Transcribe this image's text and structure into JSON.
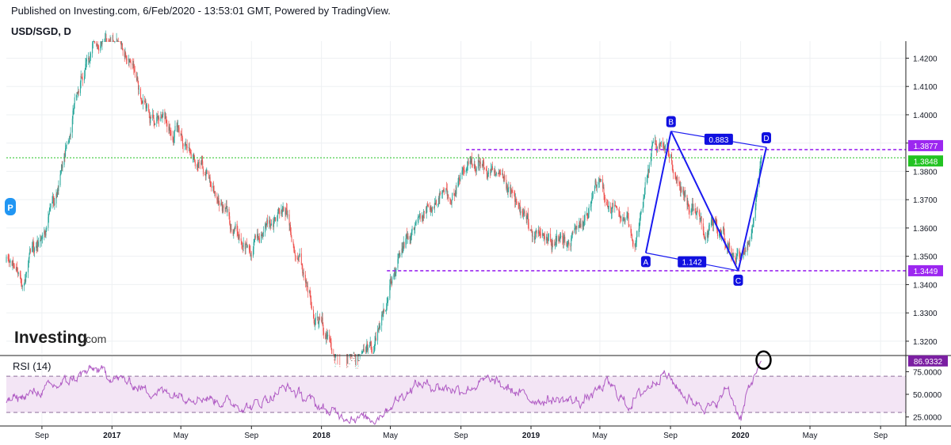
{
  "header": {
    "published": "Published on Investing.com, 6/Feb/2020 - 13:53:01 GMT, Powered by TradingView.",
    "symbol": "USD/SGD, D"
  },
  "logo": {
    "brand": "Investing",
    "suffix": ".com"
  },
  "price_marker": "P",
  "rsi_label": "RSI (14)",
  "colors": {
    "up_candle": "#26a69a",
    "down_candle": "#ef5350",
    "pattern_blue": "#1a1af0",
    "level_purple": "#9c27f0",
    "current_price_green": "#22c322",
    "rsi_line": "#b05cc4",
    "rsi_band": "#f3e5f5"
  },
  "chart_data": [
    {
      "type": "candlestick",
      "title": "USD/SGD, D",
      "x_tick_labels": [
        "Sep",
        "2017",
        "May",
        "Sep",
        "2018",
        "May",
        "Sep",
        "2019",
        "May",
        "Sep",
        "2020",
        "May",
        "Sep"
      ],
      "y_tick_labels": [
        "1.4200",
        "1.4100",
        "1.4000",
        "1.3900",
        "1.3800",
        "1.3700",
        "1.3600",
        "1.3500",
        "1.3400",
        "1.3300",
        "1.3200"
      ],
      "ylim": [
        1.3155,
        1.426
      ],
      "xlim": [
        "2016-07-01",
        "2020-10-15"
      ],
      "grid": true,
      "close_path": [
        [
          "2016-07-01",
          1.348
        ],
        [
          "2016-08-01",
          1.343
        ],
        [
          "2016-09-01",
          1.357
        ],
        [
          "2016-10-01",
          1.375
        ],
        [
          "2016-11-01",
          1.405
        ],
        [
          "2016-12-01",
          1.425
        ],
        [
          "2017-01-01",
          1.43
        ],
        [
          "2017-02-01",
          1.418
        ],
        [
          "2017-03-01",
          1.4
        ],
        [
          "2017-04-01",
          1.398
        ],
        [
          "2017-05-01",
          1.395
        ],
        [
          "2017-06-01",
          1.385
        ],
        [
          "2017-07-01",
          1.372
        ],
        [
          "2017-08-01",
          1.36
        ],
        [
          "2017-09-01",
          1.352
        ],
        [
          "2017-10-01",
          1.362
        ],
        [
          "2017-11-01",
          1.366
        ],
        [
          "2017-12-01",
          1.345
        ],
        [
          "2018-01-01",
          1.325
        ],
        [
          "2018-02-01",
          1.315
        ],
        [
          "2018-03-01",
          1.312
        ],
        [
          "2018-04-01",
          1.318
        ],
        [
          "2018-05-01",
          1.34
        ],
        [
          "2018-06-01",
          1.355
        ],
        [
          "2018-07-01",
          1.366
        ],
        [
          "2018-08-01",
          1.372
        ],
        [
          "2018-09-01",
          1.375
        ],
        [
          "2018-10-01",
          1.385
        ],
        [
          "2018-11-01",
          1.375
        ],
        [
          "2018-12-01",
          1.368
        ],
        [
          "2019-01-01",
          1.358
        ],
        [
          "2019-02-01",
          1.355
        ],
        [
          "2019-03-01",
          1.355
        ],
        [
          "2019-04-01",
          1.36
        ],
        [
          "2019-05-01",
          1.375
        ],
        [
          "2019-06-01",
          1.365
        ],
        [
          "2019-07-01",
          1.358
        ],
        [
          "2019-08-01",
          1.385
        ],
        [
          "2019-09-01",
          1.385
        ],
        [
          "2019-10-01",
          1.37
        ],
        [
          "2019-11-01",
          1.36
        ],
        [
          "2019-12-01",
          1.358
        ],
        [
          "2020-01-01",
          1.348
        ],
        [
          "2020-01-20",
          1.358
        ],
        [
          "2020-02-06",
          1.3848
        ]
      ],
      "current_price": 1.3848,
      "price_labels": [
        "1.3877",
        "1.3848",
        "1.3449"
      ],
      "horizontal_levels": [
        {
          "value": 1.3877,
          "label": "1.3877",
          "from": "2018-09-10",
          "to": "2020-10-15"
        },
        {
          "value": 1.3449,
          "label": "1.3449",
          "from": "2018-04-25",
          "to": "2020-10-15"
        }
      ],
      "annotations": {
        "pattern_points": [
          {
            "label": "A",
            "date": "2019-07-20",
            "value": 1.3512
          },
          {
            "label": "B",
            "date": "2019-09-02",
            "value": 1.3942
          },
          {
            "label": "C",
            "date": "2019-12-28",
            "value": 1.3449
          },
          {
            "label": "D",
            "date": "2020-02-15",
            "value": 1.3885
          }
        ],
        "ratios": [
          {
            "label": "0.883",
            "between": [
              "B",
              "D"
            ]
          },
          {
            "label": "1.142",
            "between": [
              "A",
              "C"
            ]
          }
        ]
      }
    },
    {
      "type": "line",
      "title": "RSI (14)",
      "y_tick_labels": [
        "75.0000",
        "50.0000",
        "25.0000"
      ],
      "ylim": [
        15,
        92
      ],
      "band": [
        30,
        70
      ],
      "current_value": 86.9332,
      "current_label": "86.9332",
      "x": [
        "2016-07-01",
        "2016-10-01",
        "2016-12-01",
        "2017-03-01",
        "2017-06-01",
        "2017-09-01",
        "2017-11-01",
        "2018-01-15",
        "2018-04-01",
        "2018-06-15",
        "2018-09-01",
        "2018-10-20",
        "2019-01-01",
        "2019-04-01",
        "2019-05-15",
        "2019-06-20",
        "2019-08-20",
        "2019-10-01",
        "2019-11-15",
        "2019-12-10",
        "2020-01-02",
        "2020-01-15",
        "2020-02-06"
      ],
      "values": [
        42,
        60,
        78,
        55,
        48,
        36,
        58,
        30,
        22,
        62,
        55,
        65,
        45,
        42,
        62,
        38,
        75,
        45,
        35,
        58,
        22,
        55,
        86.9
      ]
    }
  ]
}
